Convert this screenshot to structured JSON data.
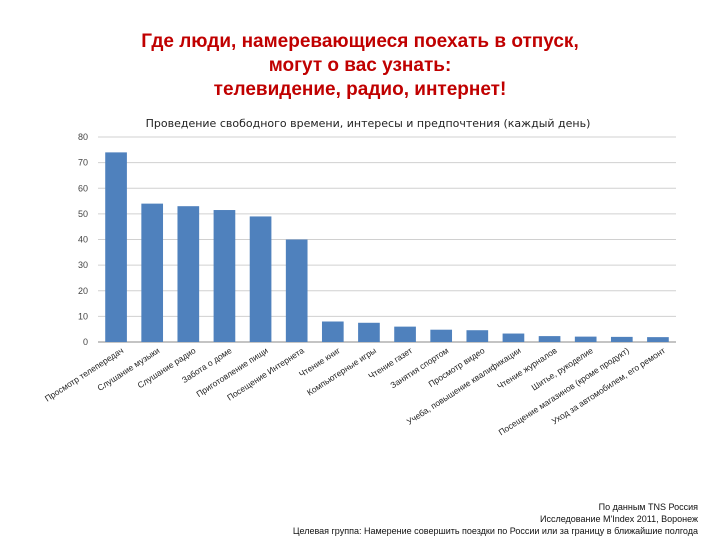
{
  "slide": {
    "title_lines": [
      "Где люди, намеревающиеся поехать в отпуск,",
      "могут о вас узнать:",
      "телевидение, радио, интернет!"
    ]
  },
  "chart_data": {
    "type": "bar",
    "title": "Проведение свободного времени, интересы и предпочтения (каждый день)",
    "xlabel": "",
    "ylabel": "",
    "ylim": [
      0,
      80
    ],
    "yticks": [
      0,
      10,
      20,
      30,
      40,
      50,
      60,
      70,
      80
    ],
    "grid": true,
    "legend": "none",
    "bar_color": "#4f81bd",
    "categories": [
      "Просмотр телепередач",
      "Слушание музыки",
      "Слушание радио",
      "Забота о доме",
      "Приготовление пищи",
      "Посещение Интернета",
      "Чтение книг",
      "Компьютерные игры",
      "Чтение газет",
      "Занятия спортом",
      "Просмотр видео",
      "Учеба, повышение квалификации",
      "Чтение журналов",
      "Шитье, рукоделие",
      "Посещение магазинов (кроме продукт)",
      "Уход за автомобилем, его ремонт"
    ],
    "values": [
      74,
      54,
      53,
      51.5,
      49,
      40,
      8,
      7.5,
      6,
      4.8,
      4.6,
      3.3,
      2.3,
      2.1,
      2.0,
      1.9
    ]
  },
  "source": {
    "lines": [
      "По данным TNS Россия",
      "Исследование  M'Index 2011, Воронеж",
      "Целевая группа: Намерение совершить поездки по России или за границу в ближайшие полгода"
    ]
  }
}
